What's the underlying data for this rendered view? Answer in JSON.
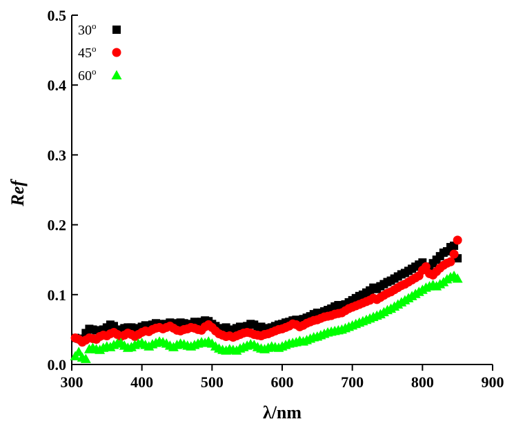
{
  "chart_data": {
    "type": "scatter",
    "title": "",
    "xlabel": "λ/nm",
    "ylabel": "Ref",
    "xlim": [
      300,
      900
    ],
    "ylim": [
      0.0,
      0.5
    ],
    "xticks": [
      "300",
      "400",
      "500",
      "600",
      "700",
      "800",
      "900"
    ],
    "yticks": [
      "0.0",
      "0.1",
      "0.2",
      "0.3",
      "0.4",
      "0.5"
    ],
    "grid": false,
    "legend_position": "top-left",
    "series": [
      {
        "name": "30",
        "name_sup": "o",
        "marker": "square",
        "color": "#000000",
        "x": [
          305,
          310,
          315,
          320,
          325,
          330,
          335,
          340,
          345,
          350,
          355,
          360,
          365,
          370,
          375,
          380,
          385,
          390,
          395,
          400,
          405,
          410,
          415,
          420,
          425,
          430,
          435,
          440,
          445,
          450,
          455,
          460,
          465,
          470,
          475,
          480,
          485,
          490,
          495,
          500,
          505,
          510,
          515,
          520,
          525,
          530,
          535,
          540,
          545,
          550,
          555,
          560,
          565,
          570,
          575,
          580,
          585,
          590,
          595,
          600,
          605,
          610,
          615,
          620,
          625,
          630,
          635,
          640,
          645,
          650,
          655,
          660,
          665,
          670,
          675,
          680,
          685,
          690,
          695,
          700,
          705,
          710,
          715,
          720,
          725,
          730,
          735,
          740,
          745,
          750,
          755,
          760,
          765,
          770,
          775,
          780,
          785,
          790,
          795,
          800,
          805,
          810,
          815,
          820,
          825,
          830,
          835,
          840,
          845,
          850
        ],
        "y": [
          0.038,
          0.037,
          0.035,
          0.045,
          0.051,
          0.05,
          0.049,
          0.048,
          0.05,
          0.053,
          0.057,
          0.055,
          0.05,
          0.049,
          0.052,
          0.053,
          0.053,
          0.051,
          0.052,
          0.054,
          0.056,
          0.055,
          0.057,
          0.059,
          0.058,
          0.057,
          0.058,
          0.06,
          0.059,
          0.058,
          0.06,
          0.059,
          0.057,
          0.058,
          0.061,
          0.06,
          0.061,
          0.063,
          0.062,
          0.058,
          0.055,
          0.052,
          0.051,
          0.053,
          0.05,
          0.049,
          0.052,
          0.054,
          0.053,
          0.055,
          0.058,
          0.057,
          0.053,
          0.054,
          0.052,
          0.051,
          0.053,
          0.055,
          0.057,
          0.058,
          0.06,
          0.061,
          0.063,
          0.064,
          0.062,
          0.065,
          0.067,
          0.069,
          0.072,
          0.074,
          0.073,
          0.076,
          0.078,
          0.08,
          0.083,
          0.085,
          0.084,
          0.086,
          0.089,
          0.092,
          0.095,
          0.098,
          0.1,
          0.103,
          0.106,
          0.11,
          0.108,
          0.112,
          0.115,
          0.118,
          0.12,
          0.123,
          0.126,
          0.129,
          0.131,
          0.134,
          0.137,
          0.14,
          0.143,
          0.146,
          0.14,
          0.138,
          0.145,
          0.15,
          0.155,
          0.16,
          0.162,
          0.168,
          0.17,
          0.152
        ]
      },
      {
        "name": "45",
        "name_sup": "o",
        "marker": "circle",
        "color": "#ff0000",
        "x": [
          305,
          310,
          315,
          320,
          325,
          330,
          335,
          340,
          345,
          350,
          355,
          360,
          365,
          370,
          375,
          380,
          385,
          390,
          395,
          400,
          405,
          410,
          415,
          420,
          425,
          430,
          435,
          440,
          445,
          450,
          455,
          460,
          465,
          470,
          475,
          480,
          485,
          490,
          495,
          500,
          505,
          510,
          515,
          520,
          525,
          530,
          535,
          540,
          545,
          550,
          555,
          560,
          565,
          570,
          575,
          580,
          585,
          590,
          595,
          600,
          605,
          610,
          615,
          620,
          625,
          630,
          635,
          640,
          645,
          650,
          655,
          660,
          665,
          670,
          675,
          680,
          685,
          690,
          695,
          700,
          705,
          710,
          715,
          720,
          725,
          730,
          735,
          740,
          745,
          750,
          755,
          760,
          765,
          770,
          775,
          780,
          785,
          790,
          795,
          800,
          805,
          810,
          815,
          820,
          825,
          830,
          835,
          840,
          845,
          850
        ],
        "y": [
          0.038,
          0.036,
          0.032,
          0.035,
          0.038,
          0.037,
          0.036,
          0.04,
          0.042,
          0.041,
          0.044,
          0.046,
          0.043,
          0.04,
          0.042,
          0.045,
          0.043,
          0.04,
          0.043,
          0.046,
          0.048,
          0.047,
          0.05,
          0.052,
          0.053,
          0.051,
          0.053,
          0.055,
          0.052,
          0.049,
          0.048,
          0.05,
          0.051,
          0.053,
          0.052,
          0.05,
          0.049,
          0.054,
          0.057,
          0.053,
          0.048,
          0.044,
          0.042,
          0.04,
          0.041,
          0.039,
          0.041,
          0.043,
          0.045,
          0.046,
          0.045,
          0.043,
          0.042,
          0.041,
          0.043,
          0.044,
          0.046,
          0.048,
          0.05,
          0.051,
          0.053,
          0.055,
          0.058,
          0.057,
          0.054,
          0.056,
          0.059,
          0.061,
          0.063,
          0.064,
          0.066,
          0.068,
          0.069,
          0.07,
          0.072,
          0.073,
          0.074,
          0.077,
          0.08,
          0.082,
          0.084,
          0.086,
          0.088,
          0.09,
          0.092,
          0.095,
          0.093,
          0.096,
          0.099,
          0.102,
          0.104,
          0.107,
          0.11,
          0.113,
          0.115,
          0.118,
          0.121,
          0.124,
          0.127,
          0.135,
          0.14,
          0.13,
          0.128,
          0.133,
          0.138,
          0.142,
          0.145,
          0.147,
          0.158,
          0.178
        ]
      },
      {
        "name": "60",
        "name_sup": "o",
        "marker": "triangle",
        "color": "#00ff00",
        "x": [
          305,
          310,
          315,
          320,
          325,
          330,
          335,
          340,
          345,
          350,
          355,
          360,
          365,
          370,
          375,
          380,
          385,
          390,
          395,
          400,
          405,
          410,
          415,
          420,
          425,
          430,
          435,
          440,
          445,
          450,
          455,
          460,
          465,
          470,
          475,
          480,
          485,
          490,
          495,
          500,
          505,
          510,
          515,
          520,
          525,
          530,
          535,
          540,
          545,
          550,
          555,
          560,
          565,
          570,
          575,
          580,
          585,
          590,
          595,
          600,
          605,
          610,
          615,
          620,
          625,
          630,
          635,
          640,
          645,
          650,
          655,
          660,
          665,
          670,
          675,
          680,
          685,
          690,
          695,
          700,
          705,
          710,
          715,
          720,
          725,
          730,
          735,
          740,
          745,
          750,
          755,
          760,
          765,
          770,
          775,
          780,
          785,
          790,
          795,
          800,
          805,
          810,
          815,
          820,
          825,
          830,
          835,
          840,
          845,
          850
        ],
        "y": [
          0.012,
          0.018,
          0.01,
          0.008,
          0.022,
          0.024,
          0.022,
          0.021,
          0.024,
          0.026,
          0.025,
          0.028,
          0.03,
          0.031,
          0.027,
          0.024,
          0.025,
          0.028,
          0.03,
          0.031,
          0.028,
          0.026,
          0.029,
          0.031,
          0.033,
          0.032,
          0.03,
          0.027,
          0.025,
          0.028,
          0.03,
          0.029,
          0.027,
          0.026,
          0.028,
          0.03,
          0.032,
          0.031,
          0.033,
          0.03,
          0.026,
          0.023,
          0.021,
          0.02,
          0.022,
          0.021,
          0.02,
          0.023,
          0.025,
          0.027,
          0.029,
          0.028,
          0.025,
          0.023,
          0.022,
          0.024,
          0.026,
          0.025,
          0.024,
          0.026,
          0.028,
          0.03,
          0.031,
          0.032,
          0.034,
          0.033,
          0.035,
          0.037,
          0.039,
          0.04,
          0.042,
          0.044,
          0.046,
          0.047,
          0.048,
          0.049,
          0.05,
          0.052,
          0.054,
          0.056,
          0.058,
          0.06,
          0.062,
          0.064,
          0.066,
          0.068,
          0.07,
          0.072,
          0.075,
          0.078,
          0.08,
          0.083,
          0.086,
          0.089,
          0.092,
          0.095,
          0.098,
          0.101,
          0.104,
          0.107,
          0.11,
          0.112,
          0.114,
          0.112,
          0.115,
          0.118,
          0.122,
          0.125,
          0.127,
          0.123
        ]
      }
    ]
  }
}
